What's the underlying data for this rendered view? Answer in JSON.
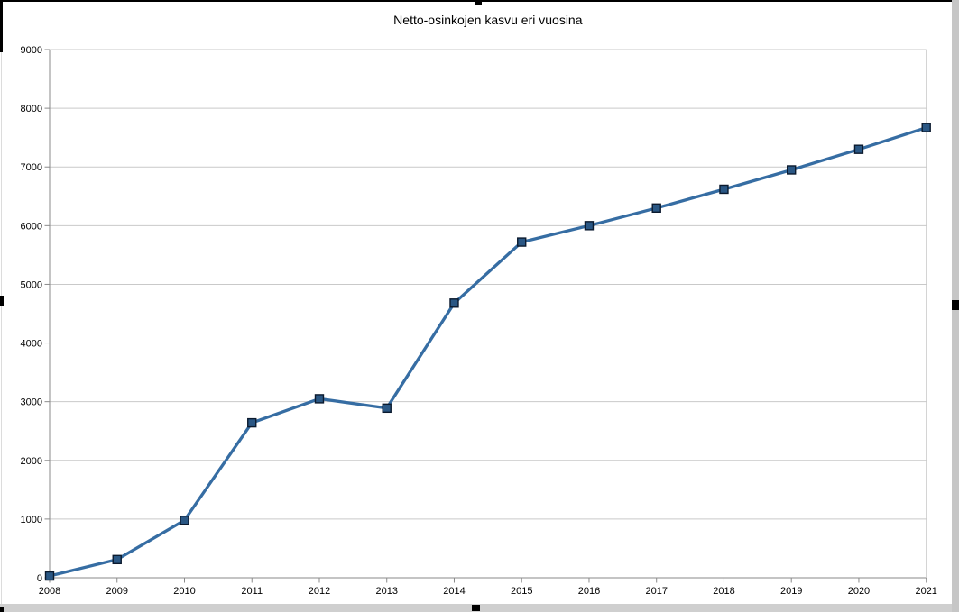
{
  "window": {
    "right_strip_color": "#c6c6c6",
    "bottom_strip_color": "#cfcfcf",
    "handle_color": "#000000"
  },
  "chart_data": {
    "type": "line",
    "title": "Netto-osinkojen kasvu eri vuosina",
    "categories": [
      "2008",
      "2009",
      "2010",
      "2011",
      "2012",
      "2013",
      "2014",
      "2015",
      "2016",
      "2017",
      "2018",
      "2019",
      "2020",
      "2021"
    ],
    "values": [
      30,
      310,
      980,
      2640,
      3050,
      2890,
      4680,
      5720,
      6000,
      6300,
      6620,
      6950,
      7300,
      7670
    ],
    "xlabel": "",
    "ylabel": "",
    "ylim": [
      0,
      9000
    ],
    "ytick_step": 1000,
    "ytick_labels": [
      "0",
      "1000",
      "2000",
      "3000",
      "4000",
      "5000",
      "6000",
      "7000",
      "8000",
      "9000"
    ],
    "grid": "horizontal",
    "legend": "none",
    "line_color": "#366da3",
    "marker": "square",
    "marker_fill": "#2a5784",
    "marker_border": "#0b1a2e",
    "gridline_color": "#c9c9c9",
    "axis_color": "#8a8a8a",
    "text_color": "#000000"
  }
}
